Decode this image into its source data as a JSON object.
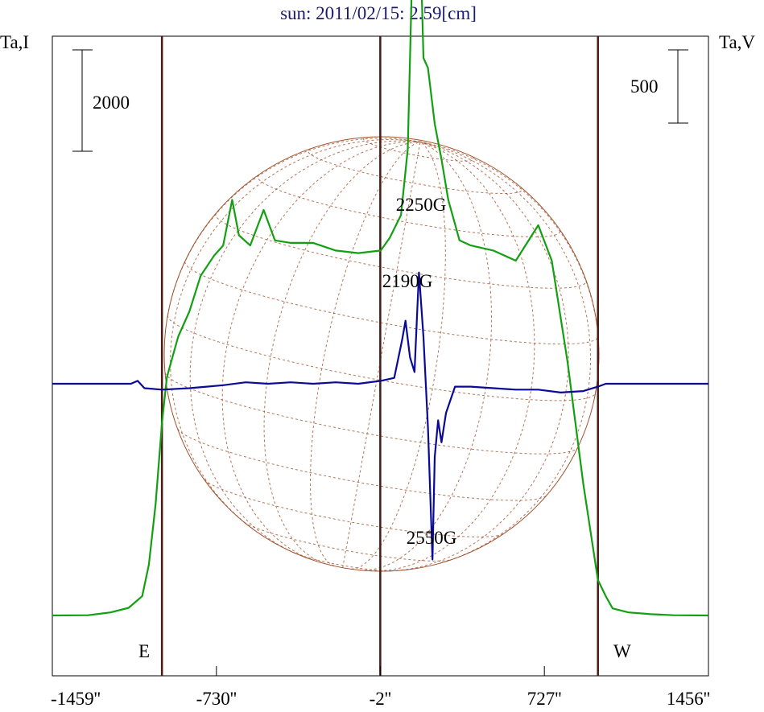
{
  "title": "sun: 2011/02/15: 2.59[cm]",
  "left_axis_label": "Ta,I",
  "right_axis_label": "Ta,V",
  "scale_bars": {
    "left": "2000",
    "right": "500"
  },
  "limb_labels": {
    "east": "E",
    "west": "W"
  },
  "colors": {
    "intensity": "#12a012",
    "polarization": "#0a0a96",
    "grid": "#a0522d",
    "limb_lines": "#4a1a14",
    "title": "#1a1a6e"
  },
  "chart_data": {
    "type": "line",
    "title": "sun: 2011/02/15: 2.59[cm]",
    "x_unit": "arcsec",
    "xlim": [
      -1459,
      1456
    ],
    "x_ticks": [
      -1459,
      -730,
      -2,
      727,
      1456
    ],
    "x_tick_labels": [
      "-1459''",
      "-730''",
      "-2''",
      "727''",
      "1456''"
    ],
    "vertical_lines_x": [
      -972,
      -2,
      965
    ],
    "annotations": [
      "2250G",
      "2190G",
      "2550G"
    ],
    "series": [
      {
        "axis": "Ta,I",
        "points": [
          [
            -1459,
            0
          ],
          [
            -1300,
            5
          ],
          [
            -1200,
            60
          ],
          [
            -1120,
            150
          ],
          [
            -1060,
            380
          ],
          [
            -1030,
            1000
          ],
          [
            -1000,
            2200
          ],
          [
            -972,
            3800
          ],
          [
            -950,
            4700
          ],
          [
            -900,
            5500
          ],
          [
            -850,
            6000
          ],
          [
            -800,
            6700
          ],
          [
            -740,
            7100
          ],
          [
            -700,
            7300
          ],
          [
            -660,
            8200
          ],
          [
            -630,
            7500
          ],
          [
            -580,
            7300
          ],
          [
            -520,
            8000
          ],
          [
            -470,
            7400
          ],
          [
            -400,
            7350
          ],
          [
            -300,
            7350
          ],
          [
            -200,
            7200
          ],
          [
            -100,
            7150
          ],
          [
            0,
            7200
          ],
          [
            40,
            7450
          ],
          [
            90,
            7900
          ],
          [
            120,
            9200
          ],
          [
            140,
            12800
          ],
          [
            160,
            15800
          ],
          [
            175,
            13500
          ],
          [
            190,
            11000
          ],
          [
            210,
            10800
          ],
          [
            240,
            9700
          ],
          [
            270,
            9000
          ],
          [
            300,
            8200
          ],
          [
            350,
            7400
          ],
          [
            400,
            7300
          ],
          [
            500,
            7200
          ],
          [
            600,
            7000
          ],
          [
            700,
            7700
          ],
          [
            760,
            7000
          ],
          [
            830,
            5000
          ],
          [
            900,
            2600
          ],
          [
            965,
            700
          ],
          [
            1000,
            380
          ],
          [
            1030,
            140
          ],
          [
            1100,
            60
          ],
          [
            1200,
            25
          ],
          [
            1300,
            5
          ],
          [
            1456,
            0
          ]
        ]
      },
      {
        "axis": "Ta,V",
        "points": [
          [
            -1459,
            0
          ],
          [
            -1110,
            0
          ],
          [
            -1080,
            20
          ],
          [
            -1050,
            -30
          ],
          [
            -972,
            -40
          ],
          [
            -850,
            -30
          ],
          [
            -700,
            -10
          ],
          [
            -600,
            10
          ],
          [
            -500,
            0
          ],
          [
            -400,
            10
          ],
          [
            -300,
            0
          ],
          [
            -200,
            10
          ],
          [
            -100,
            0
          ],
          [
            0,
            20
          ],
          [
            60,
            40
          ],
          [
            95,
            300
          ],
          [
            110,
            430
          ],
          [
            130,
            180
          ],
          [
            150,
            80
          ],
          [
            170,
            760
          ],
          [
            190,
            320
          ],
          [
            210,
            -300
          ],
          [
            230,
            -1200
          ],
          [
            240,
            -500
          ],
          [
            255,
            -250
          ],
          [
            270,
            -400
          ],
          [
            290,
            -200
          ],
          [
            330,
            -20
          ],
          [
            400,
            -20
          ],
          [
            500,
            -30
          ],
          [
            600,
            -40
          ],
          [
            700,
            -40
          ],
          [
            800,
            -60
          ],
          [
            900,
            -50
          ],
          [
            965,
            -20
          ],
          [
            1000,
            0
          ],
          [
            1456,
            0
          ]
        ]
      }
    ]
  }
}
